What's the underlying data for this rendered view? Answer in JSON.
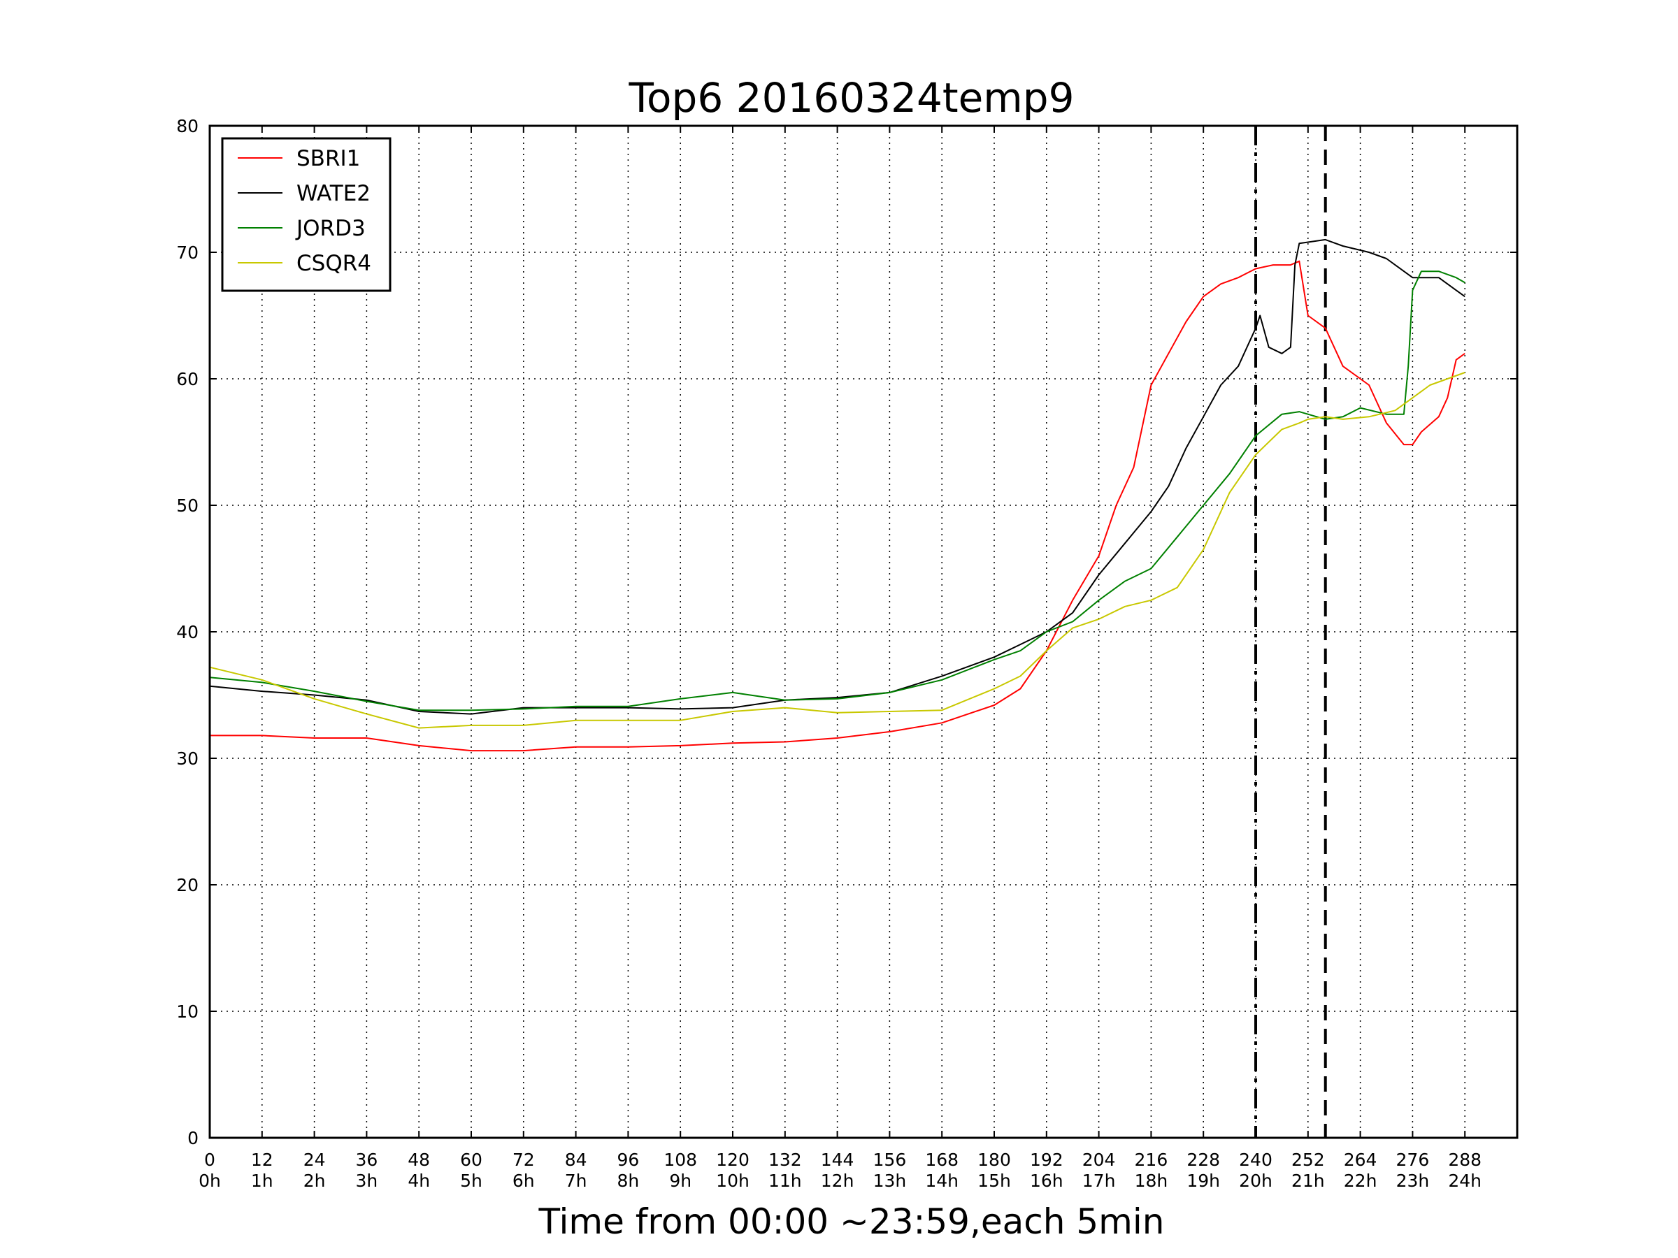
{
  "chart_data": {
    "type": "line",
    "title": "Top6 20160324temp9",
    "xlabel": "Time from 00:00 ~23:59,each 5min",
    "ylabel": "",
    "xlim": [
      0,
      300
    ],
    "ylim": [
      0,
      80
    ],
    "grid": true,
    "legend_position": "top-left",
    "x_ticks": [
      0,
      12,
      24,
      36,
      48,
      60,
      72,
      84,
      96,
      108,
      120,
      132,
      144,
      156,
      168,
      180,
      192,
      204,
      216,
      228,
      240,
      252,
      264,
      276,
      288
    ],
    "x_tick_labels": [
      "0",
      "12",
      "24",
      "36",
      "48",
      "60",
      "72",
      "84",
      "96",
      "108",
      "120",
      "132",
      "144",
      "156",
      "168",
      "180",
      "192",
      "204",
      "216",
      "228",
      "240",
      "252",
      "264",
      "276",
      "288"
    ],
    "x_tick_sublabels": [
      "0h",
      "1h",
      "2h",
      "3h",
      "4h",
      "5h",
      "6h",
      "7h",
      "8h",
      "9h",
      "10h",
      "11h",
      "12h",
      "13h",
      "14h",
      "15h",
      "16h",
      "17h",
      "18h",
      "19h",
      "20h",
      "21h",
      "22h",
      "23h",
      "24h"
    ],
    "y_ticks": [
      0,
      10,
      20,
      30,
      40,
      50,
      60,
      70,
      80
    ],
    "y_tick_labels": [
      "0",
      "10",
      "20",
      "30",
      "40",
      "50",
      "60",
      "70",
      "80"
    ],
    "vertical_markers": [
      {
        "x": 240,
        "style": "dashdot"
      },
      {
        "x": 256,
        "style": "dashed"
      }
    ],
    "series": [
      {
        "name": "SBRI1",
        "color": "#ff0000",
        "points": [
          [
            0,
            31.8
          ],
          [
            12,
            31.8
          ],
          [
            24,
            31.6
          ],
          [
            36,
            31.6
          ],
          [
            48,
            31.0
          ],
          [
            60,
            30.6
          ],
          [
            72,
            30.6
          ],
          [
            84,
            30.9
          ],
          [
            96,
            30.9
          ],
          [
            108,
            31.0
          ],
          [
            120,
            31.2
          ],
          [
            132,
            31.3
          ],
          [
            144,
            31.6
          ],
          [
            156,
            32.1
          ],
          [
            168,
            32.8
          ],
          [
            180,
            34.2
          ],
          [
            186,
            35.5
          ],
          [
            192,
            38.5
          ],
          [
            198,
            42.5
          ],
          [
            204,
            46.0
          ],
          [
            208,
            50.0
          ],
          [
            212,
            53.0
          ],
          [
            216,
            59.5
          ],
          [
            220,
            62.0
          ],
          [
            224,
            64.5
          ],
          [
            228,
            66.5
          ],
          [
            232,
            67.5
          ],
          [
            236,
            68.0
          ],
          [
            240,
            68.7
          ],
          [
            244,
            69.0
          ],
          [
            248,
            69.0
          ],
          [
            250,
            69.3
          ],
          [
            252,
            65.0
          ],
          [
            256,
            64.0
          ],
          [
            260,
            61.0
          ],
          [
            266,
            59.5
          ],
          [
            270,
            56.5
          ],
          [
            274,
            54.8
          ],
          [
            276,
            54.8
          ],
          [
            278,
            55.8
          ],
          [
            282,
            57.0
          ],
          [
            284,
            58.5
          ],
          [
            286,
            61.5
          ],
          [
            288,
            62.0
          ]
        ]
      },
      {
        "name": "WATE2",
        "color": "#000000",
        "points": [
          [
            0,
            35.7
          ],
          [
            12,
            35.3
          ],
          [
            24,
            35.0
          ],
          [
            36,
            34.6
          ],
          [
            48,
            33.7
          ],
          [
            60,
            33.5
          ],
          [
            72,
            34.0
          ],
          [
            84,
            34.0
          ],
          [
            96,
            34.0
          ],
          [
            108,
            33.9
          ],
          [
            120,
            34.0
          ],
          [
            132,
            34.6
          ],
          [
            144,
            34.8
          ],
          [
            156,
            35.2
          ],
          [
            168,
            36.5
          ],
          [
            180,
            38.0
          ],
          [
            186,
            39.0
          ],
          [
            192,
            40.0
          ],
          [
            198,
            41.5
          ],
          [
            204,
            44.5
          ],
          [
            210,
            47.0
          ],
          [
            216,
            49.5
          ],
          [
            220,
            51.5
          ],
          [
            224,
            54.5
          ],
          [
            228,
            57.0
          ],
          [
            232,
            59.5
          ],
          [
            236,
            61.0
          ],
          [
            240,
            64.0
          ],
          [
            241,
            65.0
          ],
          [
            243,
            62.5
          ],
          [
            246,
            62.0
          ],
          [
            248,
            62.5
          ],
          [
            249,
            69.0
          ],
          [
            250,
            70.7
          ],
          [
            252,
            70.8
          ],
          [
            256,
            71.0
          ],
          [
            260,
            70.5
          ],
          [
            266,
            70.0
          ],
          [
            270,
            69.5
          ],
          [
            276,
            68.0
          ],
          [
            282,
            68.0
          ],
          [
            286,
            67.0
          ],
          [
            288,
            66.5
          ]
        ]
      },
      {
        "name": "JORD3",
        "color": "#008000",
        "points": [
          [
            0,
            36.4
          ],
          [
            12,
            36.0
          ],
          [
            24,
            35.3
          ],
          [
            36,
            34.5
          ],
          [
            48,
            33.8
          ],
          [
            60,
            33.8
          ],
          [
            72,
            33.9
          ],
          [
            84,
            34.1
          ],
          [
            96,
            34.1
          ],
          [
            108,
            34.7
          ],
          [
            120,
            35.2
          ],
          [
            132,
            34.6
          ],
          [
            144,
            34.7
          ],
          [
            156,
            35.2
          ],
          [
            168,
            36.2
          ],
          [
            180,
            37.8
          ],
          [
            186,
            38.5
          ],
          [
            192,
            40.0
          ],
          [
            198,
            40.8
          ],
          [
            204,
            42.5
          ],
          [
            210,
            44.0
          ],
          [
            216,
            45.0
          ],
          [
            222,
            47.5
          ],
          [
            228,
            50.0
          ],
          [
            234,
            52.5
          ],
          [
            240,
            55.5
          ],
          [
            246,
            57.2
          ],
          [
            250,
            57.4
          ],
          [
            252,
            57.2
          ],
          [
            256,
            56.8
          ],
          [
            260,
            57.0
          ],
          [
            264,
            57.7
          ],
          [
            270,
            57.2
          ],
          [
            274,
            57.2
          ],
          [
            275,
            61.0
          ],
          [
            276,
            67.0
          ],
          [
            278,
            68.5
          ],
          [
            282,
            68.5
          ],
          [
            286,
            68.0
          ],
          [
            288,
            67.6
          ]
        ]
      },
      {
        "name": "CSQR4",
        "color": "#c8c800",
        "points": [
          [
            0,
            37.2
          ],
          [
            12,
            36.2
          ],
          [
            24,
            34.7
          ],
          [
            36,
            33.5
          ],
          [
            48,
            32.4
          ],
          [
            60,
            32.6
          ],
          [
            72,
            32.6
          ],
          [
            84,
            33.0
          ],
          [
            96,
            33.0
          ],
          [
            108,
            33.0
          ],
          [
            120,
            33.7
          ],
          [
            132,
            34.0
          ],
          [
            144,
            33.6
          ],
          [
            156,
            33.7
          ],
          [
            168,
            33.8
          ],
          [
            180,
            35.5
          ],
          [
            186,
            36.5
          ],
          [
            192,
            38.5
          ],
          [
            198,
            40.3
          ],
          [
            204,
            41.0
          ],
          [
            210,
            42.0
          ],
          [
            216,
            42.5
          ],
          [
            222,
            43.5
          ],
          [
            228,
            46.5
          ],
          [
            234,
            51.0
          ],
          [
            240,
            54.0
          ],
          [
            246,
            56.0
          ],
          [
            250,
            56.5
          ],
          [
            252,
            56.8
          ],
          [
            256,
            57.0
          ],
          [
            260,
            56.8
          ],
          [
            266,
            57.0
          ],
          [
            272,
            57.5
          ],
          [
            276,
            58.5
          ],
          [
            280,
            59.5
          ],
          [
            284,
            60.0
          ],
          [
            288,
            60.5
          ]
        ]
      }
    ]
  }
}
